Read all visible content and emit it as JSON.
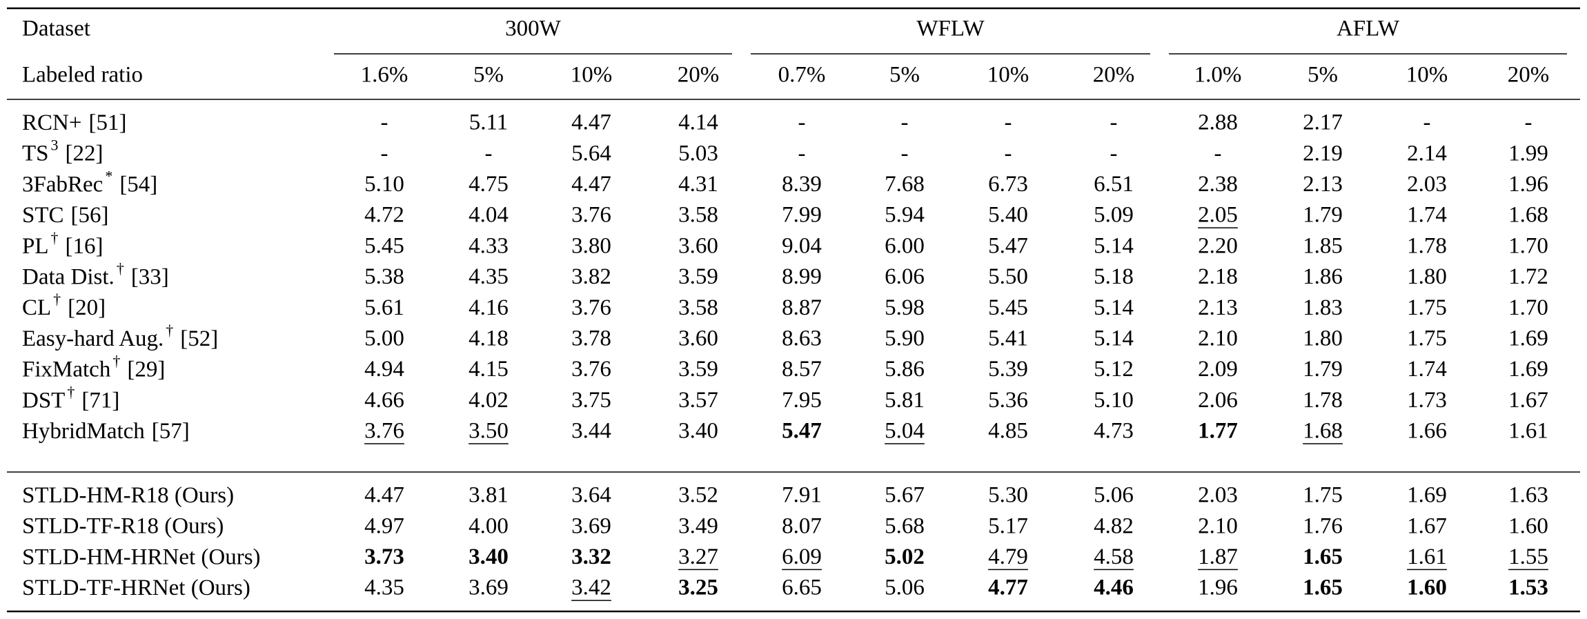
{
  "table": {
    "header": {
      "first_col": [
        "Dataset",
        "Labeled ratio"
      ],
      "groups": [
        {
          "name": "300W",
          "columns": [
            "1.6%",
            "5%",
            "10%",
            "20%"
          ]
        },
        {
          "name": "WFLW",
          "columns": [
            "0.7%",
            "5%",
            "10%",
            "20%"
          ]
        },
        {
          "name": "AFLW",
          "columns": [
            "1.0%",
            "5%",
            "10%",
            "20%"
          ]
        }
      ]
    },
    "sections": [
      {
        "rows": [
          {
            "method": "RCN+",
            "ref": "[51]",
            "cells": [
              "-",
              "5.11",
              "4.47",
              "4.14",
              "-",
              "-",
              "-",
              "-",
              "2.88",
              "2.17",
              "-",
              "-"
            ]
          },
          {
            "method": "TS",
            "sup": "3",
            "ref": "[22]",
            "cells": [
              "-",
              "-",
              "5.64",
              "5.03",
              "-",
              "-",
              "-",
              "-",
              "-",
              "2.19",
              "2.14",
              "1.99"
            ]
          },
          {
            "method": "3FabRec",
            "sup": "*",
            "ref": "[54]",
            "cells": [
              "5.10",
              "4.75",
              "4.47",
              "4.31",
              "8.39",
              "7.68",
              "6.73",
              "6.51",
              "2.38",
              "2.13",
              "2.03",
              "1.96"
            ]
          },
          {
            "method": "STC",
            "ref": "[56]",
            "cells": [
              "4.72",
              "4.04",
              "3.76",
              "3.58",
              "7.99",
              "5.94",
              "5.40",
              "5.09",
              {
                "text": "2.05",
                "underline": true
              },
              "1.79",
              "1.74",
              "1.68"
            ]
          },
          {
            "method": "PL",
            "sup": "†",
            "ref": "[16]",
            "cells": [
              "5.45",
              "4.33",
              "3.80",
              "3.60",
              "9.04",
              "6.00",
              "5.47",
              "5.14",
              "2.20",
              "1.85",
              "1.78",
              "1.70"
            ]
          },
          {
            "method": "Data Dist.",
            "sup": "†",
            "ref": "[33]",
            "cells": [
              "5.38",
              "4.35",
              "3.82",
              "3.59",
              "8.99",
              "6.06",
              "5.50",
              "5.18",
              "2.18",
              "1.86",
              "1.80",
              "1.72"
            ]
          },
          {
            "method": "CL",
            "sup": "†",
            "ref": "[20]",
            "cells": [
              "5.61",
              "4.16",
              "3.76",
              "3.58",
              "8.87",
              "5.98",
              "5.45",
              "5.14",
              "2.13",
              "1.83",
              "1.75",
              "1.70"
            ]
          },
          {
            "method": "Easy-hard Aug.",
            "sup": "†",
            "ref": "[52]",
            "cells": [
              "5.00",
              "4.18",
              "3.78",
              "3.60",
              "8.63",
              "5.90",
              "5.41",
              "5.14",
              "2.10",
              "1.80",
              "1.75",
              "1.69"
            ]
          },
          {
            "method": "FixMatch",
            "sup": "†",
            "ref": "[29]",
            "cells": [
              "4.94",
              "4.15",
              "3.76",
              "3.59",
              "8.57",
              "5.86",
              "5.39",
              "5.12",
              "2.09",
              "1.79",
              "1.74",
              "1.69"
            ]
          },
          {
            "method": "DST",
            "sup": "†",
            "ref": "[71]",
            "cells": [
              "4.66",
              "4.02",
              "3.75",
              "3.57",
              "7.95",
              "5.81",
              "5.36",
              "5.10",
              "2.06",
              "1.78",
              "1.73",
              "1.67"
            ]
          },
          {
            "method": "HybridMatch",
            "ref": "[57]",
            "cells": [
              {
                "text": "3.76",
                "underline": true
              },
              {
                "text": "3.50",
                "underline": true
              },
              "3.44",
              "3.40",
              {
                "text": "5.47",
                "bold": true
              },
              {
                "text": "5.04",
                "underline": true
              },
              "4.85",
              "4.73",
              {
                "text": "1.77",
                "bold": true
              },
              {
                "text": "1.68",
                "underline": true
              },
              "1.66",
              "1.61"
            ]
          }
        ]
      },
      {
        "rows": [
          {
            "method": "STLD-HM-R18 (Ours)",
            "cells": [
              "4.47",
              "3.81",
              "3.64",
              "3.52",
              "7.91",
              "5.67",
              "5.30",
              "5.06",
              "2.03",
              "1.75",
              "1.69",
              "1.63"
            ]
          },
          {
            "method": "STLD-TF-R18 (Ours)",
            "cells": [
              "4.97",
              "4.00",
              "3.69",
              "3.49",
              "8.07",
              "5.68",
              "5.17",
              "4.82",
              "2.10",
              "1.76",
              "1.67",
              "1.60"
            ]
          },
          {
            "method": "STLD-HM-HRNet (Ours)",
            "cells": [
              {
                "text": "3.73",
                "bold": true
              },
              {
                "text": "3.40",
                "bold": true
              },
              {
                "text": "3.32",
                "bold": true
              },
              {
                "text": "3.27",
                "underline": true
              },
              {
                "text": "6.09",
                "underline": true
              },
              {
                "text": "5.02",
                "bold": true
              },
              {
                "text": "4.79",
                "underline": true
              },
              {
                "text": "4.58",
                "underline": true
              },
              {
                "text": "1.87",
                "underline": true
              },
              {
                "text": "1.65",
                "bold": true
              },
              {
                "text": "1.61",
                "underline": true
              },
              {
                "text": "1.55",
                "underline": true
              }
            ]
          },
          {
            "method": "STLD-TF-HRNet (Ours)",
            "cells": [
              "4.35",
              "3.69",
              {
                "text": "3.42",
                "underline": true
              },
              {
                "text": "3.25",
                "bold": true
              },
              "6.65",
              "5.06",
              {
                "text": "4.77",
                "bold": true
              },
              {
                "text": "4.46",
                "bold": true
              },
              "1.96",
              {
                "text": "1.65",
                "bold": true
              },
              {
                "text": "1.60",
                "bold": true
              },
              {
                "text": "1.53",
                "bold": true
              }
            ]
          }
        ]
      }
    ]
  }
}
